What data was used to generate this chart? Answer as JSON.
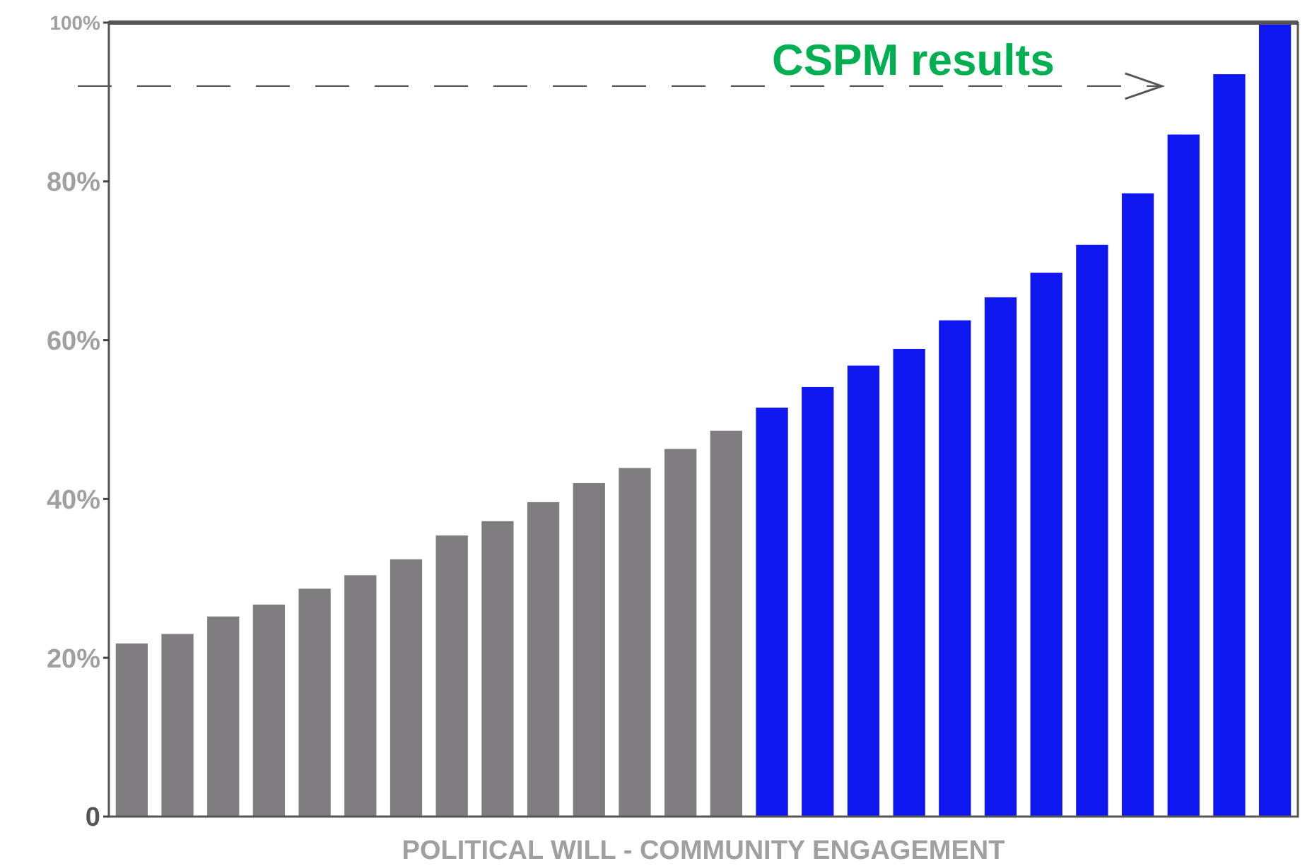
{
  "chart_data": {
    "type": "bar",
    "xlabel": "POLITICAL WILL - COMMUNITY ENGAGEMENT",
    "categories": [
      null,
      null,
      null,
      null,
      null,
      null,
      null,
      null,
      null,
      null,
      null,
      null,
      null,
      null,
      null,
      null,
      null,
      null,
      null,
      null,
      null,
      null,
      null,
      null,
      null,
      null
    ],
    "values": [
      21.8,
      23.0,
      25.2,
      26.7,
      28.7,
      30.4,
      32.4,
      35.4,
      37.2,
      39.6,
      42.0,
      43.9,
      46.3,
      48.6,
      51.5,
      54.1,
      56.8,
      58.9,
      62.5,
      65.4,
      68.5,
      72.0,
      78.5,
      85.9,
      93.5,
      100
    ],
    "colors": [
      "#7f7d80",
      "#7f7d80",
      "#7f7d80",
      "#7f7d80",
      "#7f7d80",
      "#7f7d80",
      "#7f7d80",
      "#7f7d80",
      "#7f7d80",
      "#7f7d80",
      "#7f7d80",
      "#7f7d80",
      "#7f7d80",
      "#7f7d80",
      "#0f17f0",
      "#0f17f0",
      "#0f17f0",
      "#0f17f0",
      "#0f17f0",
      "#0f17f0",
      "#0f17f0",
      "#0f17f0",
      "#0f17f0",
      "#0f17f0",
      "#0f17f0",
      "#0f17f0"
    ],
    "ylim": [
      0,
      100
    ],
    "yticks": [
      {
        "value": 0,
        "label": "0"
      },
      {
        "value": 20,
        "label": "20%"
      },
      {
        "value": 40,
        "label": "40%"
      },
      {
        "value": 60,
        "label": "60%"
      },
      {
        "value": 80,
        "label": "80%"
      },
      {
        "value": 100,
        "label": "100%"
      }
    ],
    "ref_lines": [
      {
        "axis": "y",
        "value": 92,
        "label": "CSPM results",
        "color": "#555555",
        "line_style": "dashed"
      }
    ],
    "grid": false
  }
}
